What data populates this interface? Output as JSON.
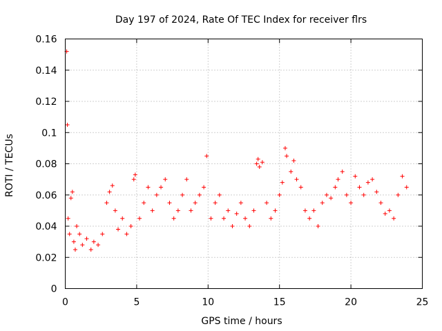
{
  "chart_data": {
    "type": "scatter",
    "title": "Day 197 of 2024, Rate Of TEC Index for receiver flrs",
    "xlabel": "GPS time / hours",
    "ylabel": "ROTI / TECUs",
    "xlim": [
      0,
      25
    ],
    "ylim": [
      0,
      0.16
    ],
    "x_ticks": [
      0,
      5,
      10,
      15,
      20,
      25
    ],
    "x_tick_labels": [
      "0",
      "5",
      "10",
      "15",
      "20",
      "25"
    ],
    "y_ticks": [
      0,
      0.02,
      0.04,
      0.06,
      0.08,
      0.1,
      0.12,
      0.14,
      0.16
    ],
    "y_tick_labels": [
      "0",
      "0.02",
      "0.04",
      "0.06",
      "0.08",
      "0.1",
      "0.12",
      "0.14",
      "0.16"
    ],
    "grid": true,
    "marker": "+",
    "color": "#ff0000",
    "series": [
      {
        "name": "flrs",
        "x": [
          0.1,
          0.15,
          0.2,
          0.3,
          0.4,
          0.5,
          0.6,
          0.7,
          0.8,
          1.0,
          1.2,
          1.5,
          1.8,
          2.0,
          2.3,
          2.6,
          2.9,
          3.1,
          3.3,
          3.5,
          3.7,
          4.0,
          4.3,
          4.6,
          4.9,
          4.8,
          5.2,
          5.5,
          5.8,
          6.1,
          6.4,
          6.7,
          7.0,
          7.3,
          7.6,
          7.9,
          8.2,
          8.5,
          8.8,
          9.1,
          9.4,
          9.7,
          9.9,
          10.2,
          10.5,
          10.8,
          11.1,
          11.4,
          11.7,
          12.0,
          12.3,
          12.6,
          12.9,
          13.2,
          13.4,
          13.5,
          13.6,
          13.8,
          14.1,
          14.4,
          14.7,
          15.0,
          15.2,
          15.4,
          15.5,
          15.8,
          16.0,
          16.2,
          16.5,
          16.8,
          17.1,
          17.4,
          17.7,
          18.0,
          18.3,
          18.6,
          18.9,
          19.1,
          19.4,
          19.7,
          20.0,
          20.3,
          20.6,
          20.9,
          21.2,
          21.5,
          21.8,
          22.1,
          22.4,
          22.7,
          23.0,
          23.3,
          23.6,
          23.9
        ],
        "y": [
          0.152,
          0.105,
          0.045,
          0.035,
          0.058,
          0.062,
          0.03,
          0.025,
          0.04,
          0.035,
          0.028,
          0.032,
          0.025,
          0.03,
          0.028,
          0.035,
          0.055,
          0.062,
          0.066,
          0.05,
          0.038,
          0.045,
          0.035,
          0.04,
          0.073,
          0.07,
          0.045,
          0.055,
          0.065,
          0.05,
          0.06,
          0.065,
          0.07,
          0.055,
          0.045,
          0.05,
          0.06,
          0.07,
          0.05,
          0.055,
          0.06,
          0.065,
          0.085,
          0.045,
          0.055,
          0.06,
          0.045,
          0.05,
          0.04,
          0.048,
          0.055,
          0.045,
          0.04,
          0.05,
          0.08,
          0.083,
          0.078,
          0.081,
          0.055,
          0.045,
          0.05,
          0.06,
          0.068,
          0.09,
          0.085,
          0.075,
          0.082,
          0.07,
          0.065,
          0.05,
          0.045,
          0.05,
          0.04,
          0.055,
          0.06,
          0.058,
          0.065,
          0.07,
          0.075,
          0.06,
          0.055,
          0.072,
          0.065,
          0.06,
          0.068,
          0.07,
          0.062,
          0.055,
          0.048,
          0.05,
          0.045,
          0.06,
          0.072,
          0.065
        ]
      }
    ]
  }
}
